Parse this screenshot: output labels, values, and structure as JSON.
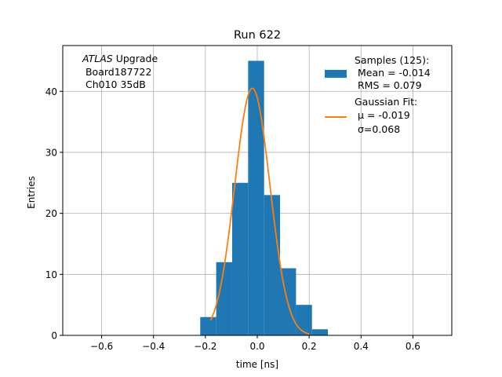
{
  "chart_data": {
    "type": "bar",
    "title": "Run 622",
    "xlabel": "time [ns]",
    "ylabel": "Entries",
    "xlim": [
      -0.75,
      0.75
    ],
    "ylim": [
      0,
      47.5
    ],
    "xticks": [
      -0.6,
      -0.4,
      -0.2,
      0.0,
      0.2,
      0.4,
      0.6
    ],
    "xtick_labels": [
      "−0.6",
      "−0.4",
      "−0.2",
      "0.0",
      "0.2",
      "0.4",
      "0.6"
    ],
    "yticks": [
      0,
      10,
      20,
      30,
      40
    ],
    "yticks_labels": [
      "0",
      "10",
      "20",
      "30",
      "40"
    ],
    "grid": true,
    "legend_position": "top-right",
    "annotation": {
      "line1_italic": "ATLAS",
      "line1_rest": " Upgrade",
      "line2": " Board187722",
      "line3": " Ch010 35dB"
    },
    "histogram": {
      "name": "Samples (125):",
      "mean_label": " Mean = -0.014",
      "rms_label": " RMS = 0.079",
      "color": "#1f77b4",
      "bin_edges": [
        -0.22,
        -0.16,
        -0.1,
        -0.04,
        0.02,
        0.08,
        0.14,
        0.2,
        0.24
      ],
      "bin_edges_full": [
        -0.22,
        -0.1584,
        -0.0969,
        -0.0353,
        0.0263,
        0.0878,
        0.1494,
        0.2109,
        0.2725
      ],
      "counts": [
        3,
        12,
        25,
        45,
        23,
        11,
        5,
        1
      ]
    },
    "fit": {
      "name": "Gaussian Fit:",
      "mu_label": " μ = -0.019",
      "sigma_label": " σ=0.068",
      "color": "#ff7f0e",
      "amplitude": 40.5,
      "mu": -0.019,
      "sigma": 0.068,
      "x_range": [
        -0.18,
        0.2
      ]
    }
  }
}
